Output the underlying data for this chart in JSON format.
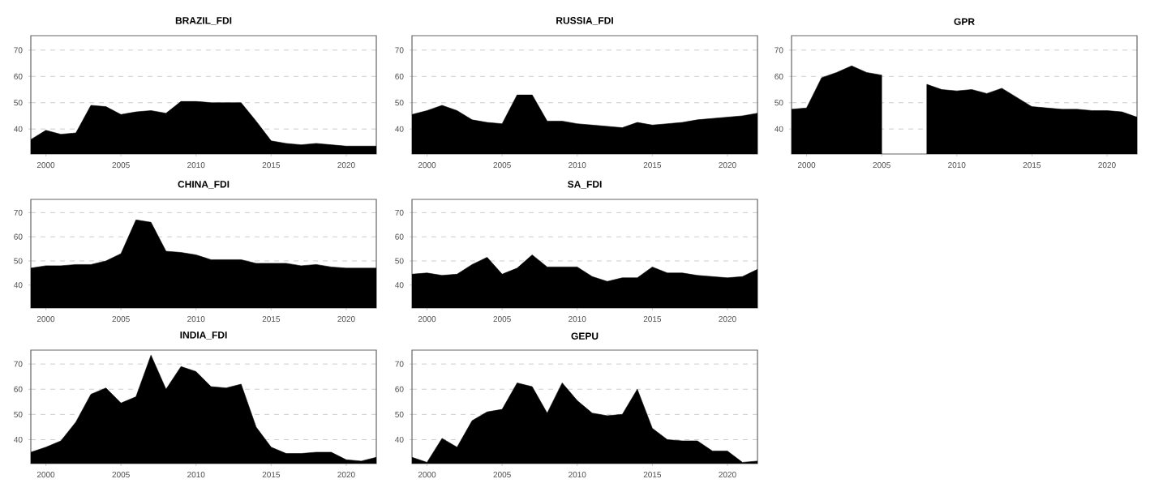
{
  "chart_data": [
    {
      "type": "area",
      "title": "BRAZIL_FDI",
      "x": [
        1999,
        2000,
        2001,
        2002,
        2003,
        2004,
        2005,
        2006,
        2007,
        2008,
        2009,
        2010,
        2011,
        2012,
        2013,
        2014,
        2015,
        2016,
        2017,
        2018,
        2019,
        2020,
        2021,
        2022
      ],
      "values": [
        36,
        39.5,
        38,
        38.5,
        49,
        48.5,
        45.5,
        46.5,
        47,
        46,
        50.5,
        50.5,
        50,
        50,
        50,
        43,
        35.5,
        34.5,
        34,
        34.5,
        34,
        33.5,
        33.5,
        33.5
      ],
      "color": "#000000",
      "xlim": [
        1999,
        2022
      ],
      "ylim": [
        30.5,
        75.5
      ],
      "xticks": [
        2000,
        2005,
        2010,
        2015,
        2020
      ],
      "yticks": [
        40,
        50,
        60,
        70
      ],
      "grid": "y"
    },
    {
      "type": "area",
      "title": "RUSSIA_FDI",
      "x": [
        1999,
        2000,
        2001,
        2002,
        2003,
        2004,
        2005,
        2006,
        2007,
        2008,
        2009,
        2010,
        2011,
        2012,
        2013,
        2014,
        2015,
        2016,
        2017,
        2018,
        2019,
        2020,
        2021,
        2022
      ],
      "values": [
        45.5,
        47,
        49,
        47,
        43.5,
        42.5,
        42,
        53,
        53,
        43,
        43,
        42,
        41.5,
        41,
        40.5,
        42.5,
        41.5,
        42,
        42.5,
        43.5,
        44,
        44.5,
        45,
        46
      ],
      "color": "#000000",
      "xlim": [
        1999,
        2022
      ],
      "ylim": [
        30.5,
        75.5
      ],
      "xticks": [
        2000,
        2005,
        2010,
        2015,
        2020
      ],
      "yticks": [
        40,
        50,
        60,
        70
      ],
      "grid": "y"
    },
    {
      "type": "area",
      "title": "GPR",
      "x": [
        1999,
        2000,
        2001,
        2002,
        2003,
        2004,
        2005,
        2006,
        2007,
        2008,
        2009,
        2010,
        2011,
        2012,
        2013,
        2014,
        2015,
        2016,
        2017,
        2018,
        2019,
        2020,
        2021,
        2022
      ],
      "values": [
        47.5,
        48,
        59.5,
        61.5,
        64,
        61.5,
        60.5,
        null,
        null,
        57,
        55,
        54.5,
        55,
        53.5,
        55.5,
        52,
        48.5,
        48,
        47.5,
        47.5,
        47,
        47,
        46.5,
        44.5
      ],
      "color": "#000000",
      "xlim": [
        1999,
        2022
      ],
      "ylim": [
        30.5,
        75.5
      ],
      "xticks": [
        2000,
        2005,
        2010,
        2015,
        2020
      ],
      "yticks": [
        40,
        50,
        60,
        70
      ],
      "grid": "y"
    },
    {
      "type": "area",
      "title": "CHINA_FDI",
      "x": [
        1999,
        2000,
        2001,
        2002,
        2003,
        2004,
        2005,
        2006,
        2007,
        2008,
        2009,
        2010,
        2011,
        2012,
        2013,
        2014,
        2015,
        2016,
        2017,
        2018,
        2019,
        2020,
        2021,
        2022
      ],
      "values": [
        47,
        48,
        48,
        48.5,
        48.5,
        50,
        53,
        67,
        66,
        54,
        53.5,
        52.5,
        50.5,
        50.5,
        50.5,
        49,
        49,
        49,
        48,
        48.5,
        47.5,
        47,
        47,
        47
      ],
      "color": "#000000",
      "xlim": [
        1999,
        2022
      ],
      "ylim": [
        30.5,
        75.5
      ],
      "xticks": [
        2000,
        2005,
        2010,
        2015,
        2020
      ],
      "yticks": [
        40,
        50,
        60,
        70
      ],
      "grid": "y"
    },
    {
      "type": "area",
      "title": "SA_FDI",
      "x": [
        1999,
        2000,
        2001,
        2002,
        2003,
        2004,
        2005,
        2006,
        2007,
        2008,
        2009,
        2010,
        2011,
        2012,
        2013,
        2014,
        2015,
        2016,
        2017,
        2018,
        2019,
        2020,
        2021,
        2022
      ],
      "values": [
        44.5,
        45,
        44,
        44.5,
        48.5,
        51.5,
        44.5,
        47,
        52.5,
        47.5,
        47.5,
        47.5,
        43.5,
        41.5,
        43,
        43,
        47.5,
        45,
        45,
        44,
        43.5,
        43,
        43.5,
        46.5
      ],
      "color": "#000000",
      "xlim": [
        1999,
        2022
      ],
      "ylim": [
        30.5,
        75.5
      ],
      "xticks": [
        2000,
        2005,
        2010,
        2015,
        2020
      ],
      "yticks": [
        40,
        50,
        60,
        70
      ],
      "grid": "y"
    },
    {
      "type": "area",
      "title": "INDIA_FDI",
      "x": [
        1999,
        2000,
        2001,
        2002,
        2003,
        2004,
        2005,
        2006,
        2007,
        2008,
        2009,
        2010,
        2011,
        2012,
        2013,
        2014,
        2015,
        2016,
        2017,
        2018,
        2019,
        2020,
        2021,
        2022
      ],
      "values": [
        35,
        37,
        39.5,
        47,
        58,
        60.5,
        54.5,
        57,
        73.5,
        60,
        69,
        67,
        61,
        60.5,
        62,
        45,
        37,
        34.5,
        34.5,
        35,
        35,
        32,
        31.5,
        33
      ],
      "color": "#000000",
      "xlim": [
        1999,
        2022
      ],
      "ylim": [
        30.5,
        75.5
      ],
      "xticks": [
        2000,
        2005,
        2010,
        2015,
        2020
      ],
      "yticks": [
        40,
        50,
        60,
        70
      ],
      "grid": "y"
    },
    {
      "type": "area",
      "title": "GEPU",
      "x": [
        1999,
        2000,
        2001,
        2002,
        2003,
        2004,
        2005,
        2006,
        2007,
        2008,
        2009,
        2010,
        2011,
        2012,
        2013,
        2014,
        2015,
        2016,
        2017,
        2018,
        2019,
        2020,
        2021,
        2022
      ],
      "values": [
        33,
        31,
        40.5,
        37,
        47.5,
        51,
        52,
        62.5,
        61,
        50.5,
        62.5,
        55.5,
        50.5,
        49.5,
        50,
        60,
        44.5,
        40,
        39.5,
        39.5,
        35.5,
        35.5,
        31,
        31.5
      ],
      "color": "#000000",
      "xlim": [
        1999,
        2022
      ],
      "ylim": [
        30.5,
        75.5
      ],
      "xticks": [
        2000,
        2005,
        2010,
        2015,
        2020
      ],
      "yticks": [
        40,
        50,
        60,
        70
      ],
      "grid": "y"
    }
  ]
}
